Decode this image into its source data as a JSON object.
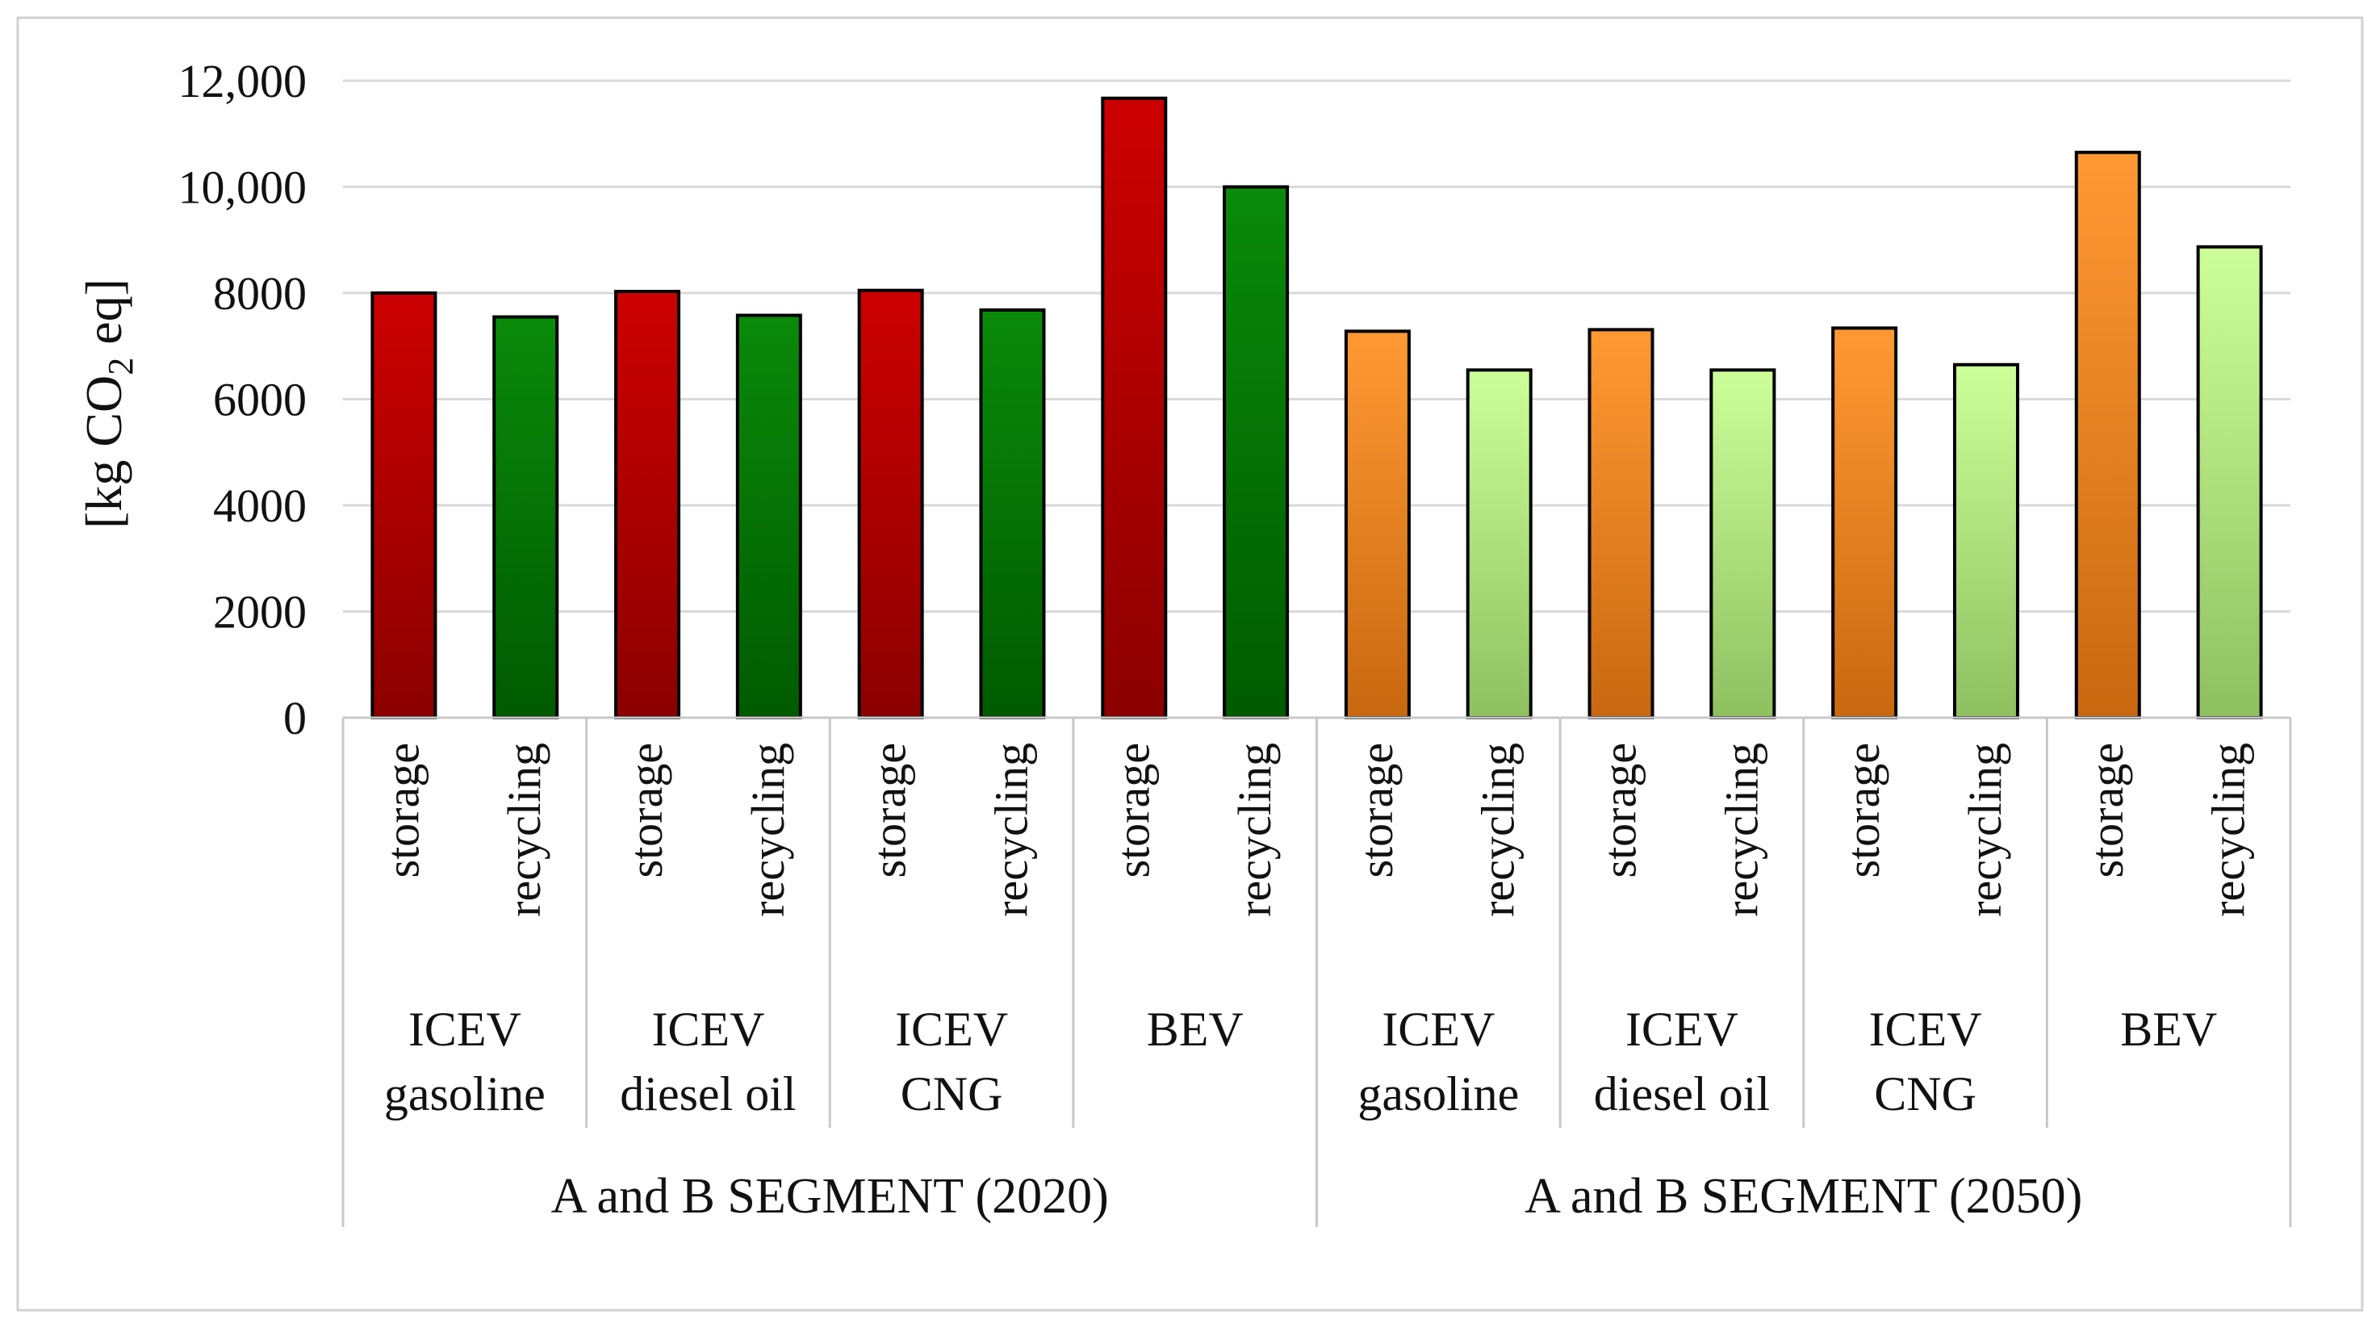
{
  "chart_data": {
    "type": "bar",
    "title": "",
    "xlabel": "",
    "ylabel_parts": [
      "[kg CO",
      "2",
      " eq]"
    ],
    "ylim": [
      0,
      12000
    ],
    "y_ticks": [
      0,
      2000,
      4000,
      6000,
      8000,
      10000,
      12000
    ],
    "y_tick_labels": [
      "0",
      "2000",
      "4000",
      "6000",
      "8000",
      "10,000",
      "12,000"
    ],
    "grid": true,
    "legend": "none",
    "segments": [
      {
        "label": "A and B SEGMENT (2020)",
        "groups": [
          {
            "label_lines": [
              "ICEV",
              "gasoline"
            ],
            "bars": [
              {
                "label": "storage",
                "value": 8000
              },
              {
                "label": "recycling",
                "value": 7550
              }
            ]
          },
          {
            "label_lines": [
              "ICEV",
              "diesel oil"
            ],
            "bars": [
              {
                "label": "storage",
                "value": 8030
              },
              {
                "label": "recycling",
                "value": 7580
              }
            ]
          },
          {
            "label_lines": [
              "ICEV",
              "CNG"
            ],
            "bars": [
              {
                "label": "storage",
                "value": 8050
              },
              {
                "label": "recycling",
                "value": 7680
              }
            ]
          },
          {
            "label_lines": [
              "BEV"
            ],
            "bars": [
              {
                "label": "storage",
                "value": 11670
              },
              {
                "label": "recycling",
                "value": 10000
              }
            ]
          }
        ]
      },
      {
        "label": "A and B SEGMENT (2050)",
        "groups": [
          {
            "label_lines": [
              "ICEV",
              "gasoline"
            ],
            "bars": [
              {
                "label": "storage",
                "value": 7280
              },
              {
                "label": "recycling",
                "value": 6550
              }
            ]
          },
          {
            "label_lines": [
              "ICEV",
              "diesel oil"
            ],
            "bars": [
              {
                "label": "storage",
                "value": 7310
              },
              {
                "label": "recycling",
                "value": 6550
              }
            ]
          },
          {
            "label_lines": [
              "ICEV",
              "CNG"
            ],
            "bars": [
              {
                "label": "storage",
                "value": 7340
              },
              {
                "label": "recycling",
                "value": 6650
              }
            ]
          },
          {
            "label_lines": [
              "BEV"
            ],
            "bars": [
              {
                "label": "storage",
                "value": 10650
              },
              {
                "label": "recycling",
                "value": 8870
              }
            ]
          }
        ]
      }
    ],
    "colors": {
      "seg0_storage": [
        "#cc0000",
        "#8b0000"
      ],
      "seg0_recycling": [
        "#0a8a0a",
        "#005a00"
      ],
      "seg1_storage": [
        "#ff9933",
        "#c86810"
      ],
      "seg1_recycling": [
        "#ccff99",
        "#8fc060"
      ],
      "grid": "#d9d9d9",
      "axis": "#c8c8c8",
      "bar_stroke": "#000000",
      "frame": "#d0d0d0"
    }
  }
}
